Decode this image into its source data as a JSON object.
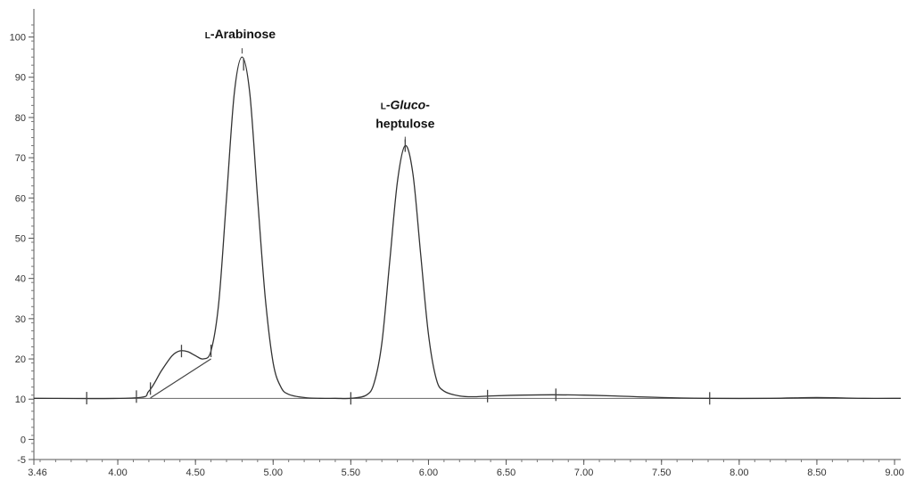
{
  "chart_data": {
    "type": "line",
    "title": "",
    "xlabel": "",
    "ylabel": "",
    "xlim": [
      3.46,
      9.04
    ],
    "ylim": [
      -5,
      103
    ],
    "x_ticks": [
      "3.46",
      "4.00",
      "4.50",
      "5.00",
      "5.50",
      "6.00",
      "6.50",
      "7.00",
      "7.50",
      "8.00",
      "8.50",
      "9.00"
    ],
    "y_ticks": [
      "-5",
      "0",
      "10",
      "20",
      "30",
      "40",
      "50",
      "60",
      "70",
      "80",
      "90",
      "100"
    ],
    "grid": false,
    "series": [
      {
        "x": [
          3.46,
          4.1,
          4.2,
          4.28,
          4.35,
          4.4,
          4.45,
          4.5,
          4.55,
          4.6,
          4.65,
          4.7,
          4.75,
          4.8,
          4.85,
          4.9,
          4.95,
          5.0,
          5.05,
          5.1,
          5.2,
          5.3,
          5.4,
          5.5,
          5.6,
          5.65,
          5.7,
          5.75,
          5.8,
          5.85,
          5.9,
          5.95,
          6.0,
          6.05,
          6.1,
          6.2,
          6.3,
          6.4,
          6.6,
          6.8,
          7.0,
          7.2,
          7.5,
          7.8,
          8.2,
          8.5,
          8.8,
          9.04
        ],
        "y": [
          10.2,
          10.3,
          12.0,
          17.0,
          20.8,
          22.0,
          21.8,
          20.8,
          20.0,
          22.0,
          34.0,
          60.0,
          86.0,
          95.0,
          86.0,
          60.0,
          35.0,
          19.0,
          13.0,
          11.2,
          10.4,
          10.2,
          10.2,
          10.2,
          11.0,
          14.0,
          24.0,
          44.0,
          64.0,
          73.0,
          66.0,
          46.0,
          26.0,
          15.0,
          12.0,
          10.8,
          10.6,
          10.8,
          11.0,
          11.1,
          11.0,
          10.8,
          10.4,
          10.2,
          10.2,
          10.4,
          10.2,
          10.2
        ]
      }
    ],
    "peak_labels": [
      {
        "prefix": "L",
        "main": "-Arabinose",
        "x": 4.8,
        "y": 95.0
      },
      {
        "prefix": "L",
        "main_italic": "-Gluco",
        "main_suffix": "-",
        "line2": "heptulose",
        "x": 5.85,
        "y": 73.0
      }
    ],
    "baseline_y": 10.2,
    "integration_marks_x": [
      3.8,
      4.12,
      4.21,
      4.41,
      4.6,
      4.81,
      5.5,
      5.85,
      6.38,
      6.82,
      7.81
    ]
  }
}
